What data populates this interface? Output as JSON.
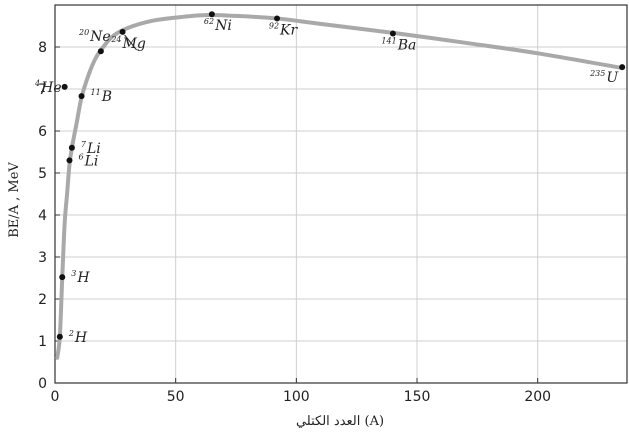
{
  "chart_data": {
    "type": "line",
    "xlabel": "(A) العدد الكتلي",
    "ylabel": "BE/A , MeV",
    "xlim": [
      0,
      237
    ],
    "ylim": [
      0,
      9
    ],
    "xticks": [
      "0",
      "50",
      "100",
      "150",
      "200"
    ],
    "yticks": [
      "0",
      "1",
      "2",
      "3",
      "4",
      "5",
      "6",
      "7",
      "8"
    ],
    "grid": true,
    "colors": {
      "curve": "#a9a9a9",
      "point": "#111111"
    },
    "curve": [
      {
        "x": 0.9,
        "y": 0.6
      },
      {
        "x": 2,
        "y": 1.1
      },
      {
        "x": 3,
        "y": 2.5
      },
      {
        "x": 4,
        "y": 3.8
      },
      {
        "x": 5,
        "y": 4.5
      },
      {
        "x": 6,
        "y": 5.2
      },
      {
        "x": 7,
        "y": 5.6
      },
      {
        "x": 9,
        "y": 6.2
      },
      {
        "x": 11,
        "y": 6.8
      },
      {
        "x": 14,
        "y": 7.35
      },
      {
        "x": 17,
        "y": 7.75
      },
      {
        "x": 20,
        "y": 8.0
      },
      {
        "x": 24,
        "y": 8.26
      },
      {
        "x": 30,
        "y": 8.45
      },
      {
        "x": 40,
        "y": 8.62
      },
      {
        "x": 50,
        "y": 8.7
      },
      {
        "x": 62,
        "y": 8.76
      },
      {
        "x": 75,
        "y": 8.74
      },
      {
        "x": 92,
        "y": 8.68
      },
      {
        "x": 110,
        "y": 8.55
      },
      {
        "x": 141,
        "y": 8.33
      },
      {
        "x": 170,
        "y": 8.1
      },
      {
        "x": 200,
        "y": 7.85
      },
      {
        "x": 235,
        "y": 7.5
      }
    ],
    "points": [
      {
        "label": "H",
        "mass": "2",
        "x": 2,
        "y": 1.1,
        "pos": "right"
      },
      {
        "label": "H",
        "mass": "3",
        "x": 3,
        "y": 2.52,
        "pos": "right"
      },
      {
        "label": "Li",
        "mass": "6",
        "x": 6,
        "y": 5.3,
        "pos": "right"
      },
      {
        "label": "Li",
        "mass": "7",
        "x": 7,
        "y": 5.6,
        "pos": "right"
      },
      {
        "label": "B",
        "mass": "11",
        "x": 11,
        "y": 6.83,
        "pos": "right"
      },
      {
        "label": "He",
        "mass": "4",
        "x": 4,
        "y": 7.05,
        "pos": "left"
      },
      {
        "label": "Ne",
        "mass": "20",
        "x": 19,
        "y": 7.9,
        "pos": "above"
      },
      {
        "label": "Mg",
        "mass": "24",
        "x": 28,
        "y": 8.36,
        "pos": "below"
      },
      {
        "label": "Ni",
        "mass": "62",
        "x": 65,
        "y": 8.78,
        "pos": "below"
      },
      {
        "label": "Kr",
        "mass": "92",
        "x": 92,
        "y": 8.68,
        "pos": "below"
      },
      {
        "label": "Ba",
        "mass": "141",
        "x": 140,
        "y": 8.32,
        "pos": "below"
      },
      {
        "label": "U",
        "mass": "235",
        "x": 235,
        "y": 7.52,
        "pos": "below-left"
      }
    ]
  }
}
